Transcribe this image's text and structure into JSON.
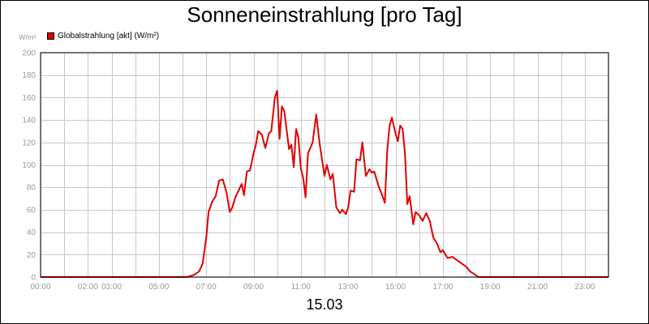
{
  "chart_data": {
    "type": "line",
    "title": "Sonneneinstrahlung [pro Tag]",
    "ylabel": "W/m²",
    "xlabel": "15.03",
    "ylim": [
      0,
      200
    ],
    "xlim": [
      0,
      24
    ],
    "grid": true,
    "legend_placement": "top-left",
    "yticks": [
      0,
      20,
      40,
      60,
      80,
      100,
      120,
      140,
      160,
      180,
      200
    ],
    "yticklabels": [
      "0",
      "20",
      "40",
      "60",
      "80",
      "100",
      "120",
      "140",
      "160",
      "180",
      "200"
    ],
    "xticks": [
      0,
      2,
      3,
      5,
      7,
      9,
      11,
      13,
      15,
      17,
      19,
      21,
      23
    ],
    "xticklabels": [
      "00:00",
      "02:00",
      "03:00",
      "05:00",
      "07:00",
      "09:00",
      "11:00",
      "13:00",
      "15:00",
      "17:00",
      "19:00",
      "21:00",
      "23:00"
    ],
    "vgrid": [
      0,
      1,
      2,
      3,
      4,
      5,
      6,
      7,
      8,
      9,
      10,
      11,
      12,
      13,
      14,
      15,
      16,
      17,
      18,
      19,
      20,
      21,
      22,
      23,
      24
    ],
    "series": [
      {
        "name": "Globalstrahlung [akt] (W/m²)",
        "color": "#e00000",
        "x": [
          0,
          6.2,
          6.5,
          6.7,
          6.85,
          7.0,
          7.1,
          7.25,
          7.4,
          7.55,
          7.7,
          7.85,
          8.0,
          8.1,
          8.25,
          8.35,
          8.5,
          8.6,
          8.72,
          8.85,
          9.0,
          9.1,
          9.2,
          9.35,
          9.5,
          9.65,
          9.75,
          9.9,
          10.0,
          10.1,
          10.2,
          10.3,
          10.5,
          10.6,
          10.7,
          10.8,
          10.9,
          11.0,
          11.1,
          11.2,
          11.3,
          11.5,
          11.65,
          11.8,
          12.0,
          12.1,
          12.25,
          12.35,
          12.5,
          12.65,
          12.75,
          12.9,
          13.0,
          13.1,
          13.25,
          13.35,
          13.5,
          13.6,
          13.75,
          13.9,
          14.0,
          14.1,
          14.3,
          14.4,
          14.55,
          14.65,
          14.75,
          14.85,
          15.0,
          15.1,
          15.2,
          15.3,
          15.4,
          15.5,
          15.6,
          15.75,
          15.85,
          16.0,
          16.15,
          16.3,
          16.45,
          16.6,
          16.75,
          16.9,
          17.0,
          17.2,
          17.4,
          17.6,
          17.8,
          18.0,
          18.15,
          18.3,
          18.5,
          24
        ],
        "values": [
          0,
          0,
          2,
          5,
          12,
          35,
          58,
          67,
          72,
          86,
          87,
          76,
          58,
          62,
          72,
          76,
          83,
          73,
          94,
          95,
          110,
          118,
          130,
          127,
          115,
          128,
          130,
          160,
          166,
          123,
          152,
          148,
          114,
          118,
          98,
          132,
          124,
          97,
          88,
          71,
          110,
          120,
          145,
          118,
          90,
          100,
          87,
          92,
          62,
          57,
          60,
          56,
          62,
          77,
          76,
          105,
          104,
          120,
          90,
          96,
          93,
          94,
          80,
          75,
          66,
          112,
          135,
          142,
          128,
          121,
          135,
          132,
          110,
          65,
          72,
          47,
          58,
          55,
          50,
          57,
          50,
          35,
          30,
          22,
          24,
          17,
          18,
          15,
          12,
          9,
          5,
          3,
          0,
          0
        ]
      }
    ]
  }
}
